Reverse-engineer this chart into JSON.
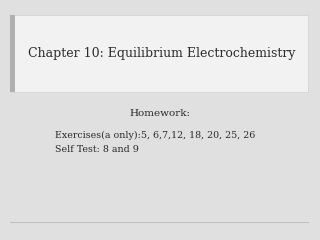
{
  "slide_bg": "#e0e0e0",
  "title_box_color": "#f2f2f2",
  "title_box_border": "#d0d0d0",
  "title_text": "Chapter 10: Equilibrium Electrochemistry",
  "title_fontsize": 9.0,
  "font_color": "#2b2b2b",
  "homework_label": "Homework:",
  "homework_fontsize": 7.5,
  "line1": "Exercises(a only):5, 6,7,12, 18, 20, 25, 26",
  "line2": "Self Test: 8 and 9",
  "body_fontsize": 6.8,
  "left_accent_color": "#b0b0b0",
  "bottom_line_color": "#c0c0c0"
}
